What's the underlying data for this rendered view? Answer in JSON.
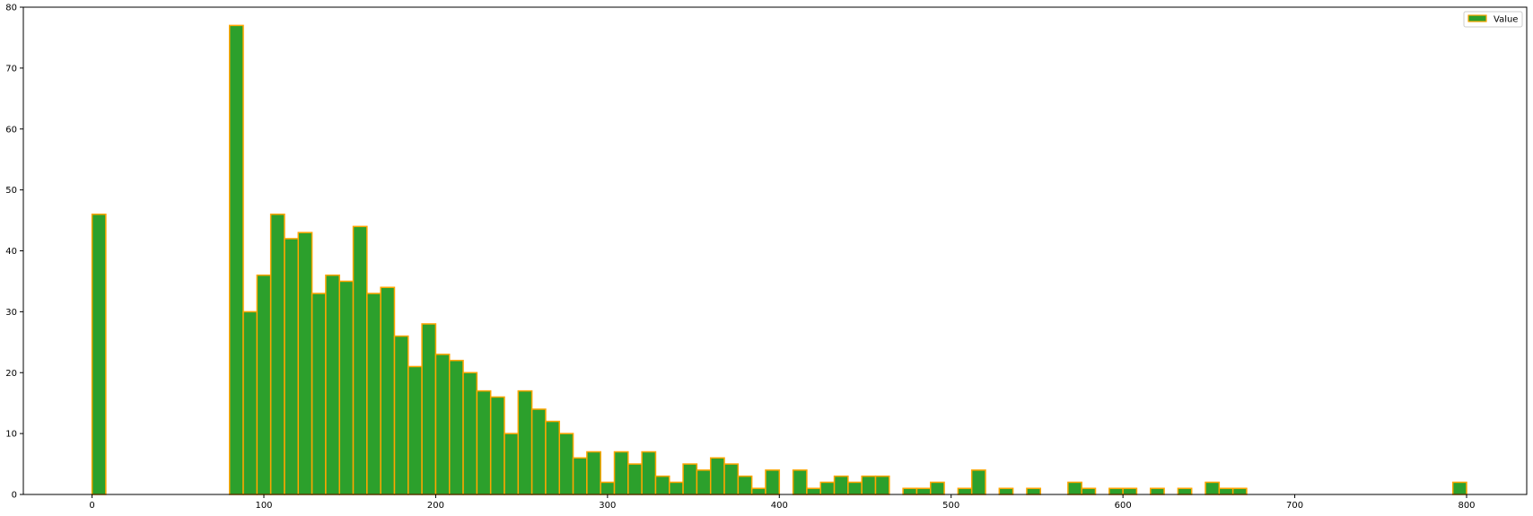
{
  "chart_data": {
    "type": "bar",
    "title": "",
    "xlabel": "",
    "ylabel": "",
    "xlim": [
      -40,
      835
    ],
    "ylim": [
      0,
      80
    ],
    "bin_width": 8,
    "x_ticks": [
      0,
      100,
      200,
      300,
      400,
      500,
      600,
      700,
      800
    ],
    "y_ticks": [
      0,
      10,
      20,
      30,
      40,
      50,
      60,
      70,
      80
    ],
    "grid": false,
    "legend": {
      "placement": "top-right",
      "entries": [
        "Value"
      ]
    },
    "series": [
      {
        "name": "Value",
        "fill": "#2ca02c",
        "edge": "#ffa500",
        "bins": [
          {
            "x": 0,
            "count": 46
          },
          {
            "x": 8,
            "count": 0
          },
          {
            "x": 16,
            "count": 0
          },
          {
            "x": 24,
            "count": 0
          },
          {
            "x": 32,
            "count": 0
          },
          {
            "x": 40,
            "count": 0
          },
          {
            "x": 48,
            "count": 0
          },
          {
            "x": 56,
            "count": 0
          },
          {
            "x": 64,
            "count": 0
          },
          {
            "x": 72,
            "count": 0
          },
          {
            "x": 80,
            "count": 77
          },
          {
            "x": 88,
            "count": 30
          },
          {
            "x": 96,
            "count": 36
          },
          {
            "x": 104,
            "count": 46
          },
          {
            "x": 112,
            "count": 42
          },
          {
            "x": 120,
            "count": 43
          },
          {
            "x": 128,
            "count": 33
          },
          {
            "x": 136,
            "count": 36
          },
          {
            "x": 144,
            "count": 35
          },
          {
            "x": 152,
            "count": 44
          },
          {
            "x": 160,
            "count": 33
          },
          {
            "x": 168,
            "count": 34
          },
          {
            "x": 176,
            "count": 26
          },
          {
            "x": 184,
            "count": 21
          },
          {
            "x": 192,
            "count": 28
          },
          {
            "x": 200,
            "count": 23
          },
          {
            "x": 208,
            "count": 22
          },
          {
            "x": 216,
            "count": 20
          },
          {
            "x": 224,
            "count": 17
          },
          {
            "x": 232,
            "count": 16
          },
          {
            "x": 240,
            "count": 10
          },
          {
            "x": 248,
            "count": 17
          },
          {
            "x": 256,
            "count": 14
          },
          {
            "x": 264,
            "count": 12
          },
          {
            "x": 272,
            "count": 10
          },
          {
            "x": 280,
            "count": 6
          },
          {
            "x": 288,
            "count": 7
          },
          {
            "x": 296,
            "count": 2
          },
          {
            "x": 304,
            "count": 7
          },
          {
            "x": 312,
            "count": 5
          },
          {
            "x": 320,
            "count": 7
          },
          {
            "x": 328,
            "count": 3
          },
          {
            "x": 336,
            "count": 2
          },
          {
            "x": 344,
            "count": 5
          },
          {
            "x": 352,
            "count": 4
          },
          {
            "x": 360,
            "count": 6
          },
          {
            "x": 368,
            "count": 5
          },
          {
            "x": 376,
            "count": 3
          },
          {
            "x": 384,
            "count": 1
          },
          {
            "x": 392,
            "count": 4
          },
          {
            "x": 400,
            "count": 0
          },
          {
            "x": 408,
            "count": 4
          },
          {
            "x": 416,
            "count": 1
          },
          {
            "x": 424,
            "count": 2
          },
          {
            "x": 432,
            "count": 3
          },
          {
            "x": 440,
            "count": 2
          },
          {
            "x": 448,
            "count": 3
          },
          {
            "x": 456,
            "count": 3
          },
          {
            "x": 464,
            "count": 0
          },
          {
            "x": 472,
            "count": 1
          },
          {
            "x": 480,
            "count": 1
          },
          {
            "x": 488,
            "count": 2
          },
          {
            "x": 496,
            "count": 0
          },
          {
            "x": 504,
            "count": 1
          },
          {
            "x": 512,
            "count": 4
          },
          {
            "x": 520,
            "count": 0
          },
          {
            "x": 528,
            "count": 1
          },
          {
            "x": 536,
            "count": 0
          },
          {
            "x": 544,
            "count": 1
          },
          {
            "x": 552,
            "count": 0
          },
          {
            "x": 560,
            "count": 0
          },
          {
            "x": 568,
            "count": 2
          },
          {
            "x": 576,
            "count": 1
          },
          {
            "x": 584,
            "count": 0
          },
          {
            "x": 592,
            "count": 1
          },
          {
            "x": 600,
            "count": 1
          },
          {
            "x": 608,
            "count": 0
          },
          {
            "x": 616,
            "count": 1
          },
          {
            "x": 624,
            "count": 0
          },
          {
            "x": 632,
            "count": 1
          },
          {
            "x": 640,
            "count": 0
          },
          {
            "x": 648,
            "count": 2
          },
          {
            "x": 656,
            "count": 1
          },
          {
            "x": 664,
            "count": 1
          },
          {
            "x": 672,
            "count": 0
          },
          {
            "x": 680,
            "count": 0
          },
          {
            "x": 688,
            "count": 0
          },
          {
            "x": 696,
            "count": 0
          },
          {
            "x": 704,
            "count": 0
          },
          {
            "x": 712,
            "count": 0
          },
          {
            "x": 720,
            "count": 0
          },
          {
            "x": 728,
            "count": 0
          },
          {
            "x": 736,
            "count": 0
          },
          {
            "x": 744,
            "count": 0
          },
          {
            "x": 752,
            "count": 0
          },
          {
            "x": 760,
            "count": 0
          },
          {
            "x": 768,
            "count": 0
          },
          {
            "x": 776,
            "count": 0
          },
          {
            "x": 784,
            "count": 0
          },
          {
            "x": 792,
            "count": 2
          }
        ]
      }
    ]
  }
}
